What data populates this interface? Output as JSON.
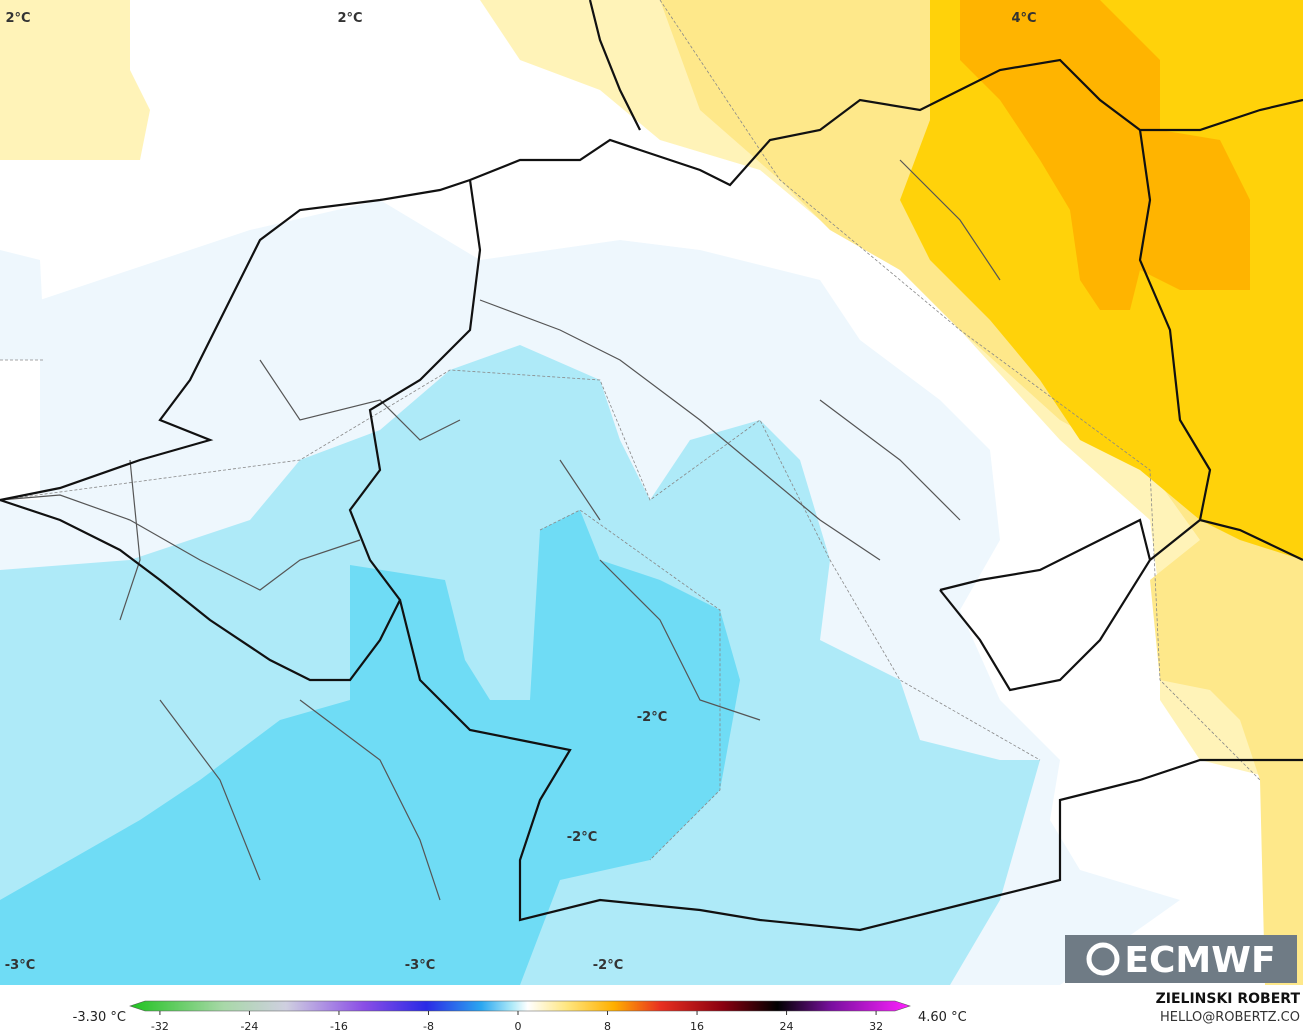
{
  "map": {
    "contour_labels": [
      "2°C",
      "2°C",
      "4°C",
      "-2°C",
      "-2°C",
      "-3°C",
      "-3°C",
      "-2°C"
    ]
  },
  "legend": {
    "min_label": "-3.30 °C",
    "max_label": "4.60 °C",
    "ticks": [
      -32,
      -24,
      -16,
      -8,
      0,
      8,
      16,
      24,
      32
    ]
  },
  "branding": {
    "logo": "ECMWF",
    "author": "ZIELINSKI ROBERT",
    "contact": "HELLO@ROBERTZ.CO"
  }
}
